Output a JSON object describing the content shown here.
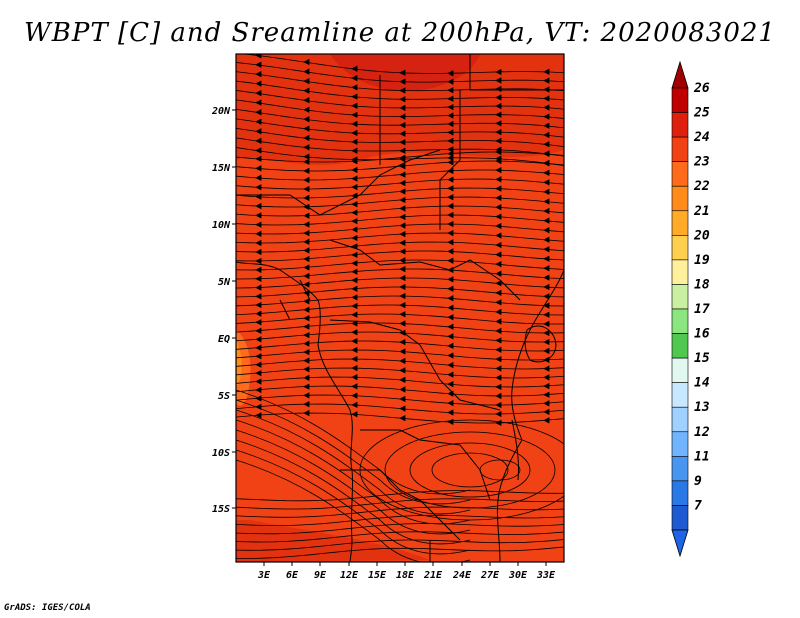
{
  "title": "WBPT [C] and Sreamline at 200hPa, VT: 2020083021",
  "credit": "GrADS: IGES/COLA",
  "map": {
    "lat_labels": [
      "20N",
      "15N",
      "10N",
      "5N",
      "EQ",
      "5S",
      "10S",
      "15S"
    ],
    "lon_labels": [
      "3E",
      "6E",
      "9E",
      "12E",
      "15E",
      "18E",
      "21E",
      "24E",
      "27E",
      "30E",
      "33E"
    ],
    "lon_range": [
      0,
      34.5
    ],
    "lat_range": [
      -20,
      24.5
    ],
    "field": "WBPT [C]",
    "overlay": "Streamline",
    "level": "200hPa",
    "valid_time": "2020083021",
    "dominant_colors": {
      "main": "#f04214",
      "north": "#e33210",
      "far_north": "#d62210",
      "southwest_patch": "#ff6b1a",
      "west_edge": "#ff8c1a"
    }
  },
  "colorbar": {
    "levels": [
      "26",
      "25",
      "24",
      "23",
      "22",
      "21",
      "20",
      "19",
      "18",
      "17",
      "16",
      "15",
      "14",
      "13",
      "12",
      "11",
      "9",
      "7"
    ],
    "colors": [
      "#c00000",
      "#e0200e",
      "#f04214",
      "#ff6b1a",
      "#ff8c1a",
      "#ffab28",
      "#ffd050",
      "#fff09c",
      "#c8f0a0",
      "#8ce680",
      "#50c850",
      "#e0f8f0",
      "#c8e8ff",
      "#a0d0ff",
      "#70b4ff",
      "#4896f0",
      "#2a78e6",
      "#1e5ad2"
    ],
    "top_cap": "#a00000",
    "bottom_cap": "#1e64e6"
  }
}
